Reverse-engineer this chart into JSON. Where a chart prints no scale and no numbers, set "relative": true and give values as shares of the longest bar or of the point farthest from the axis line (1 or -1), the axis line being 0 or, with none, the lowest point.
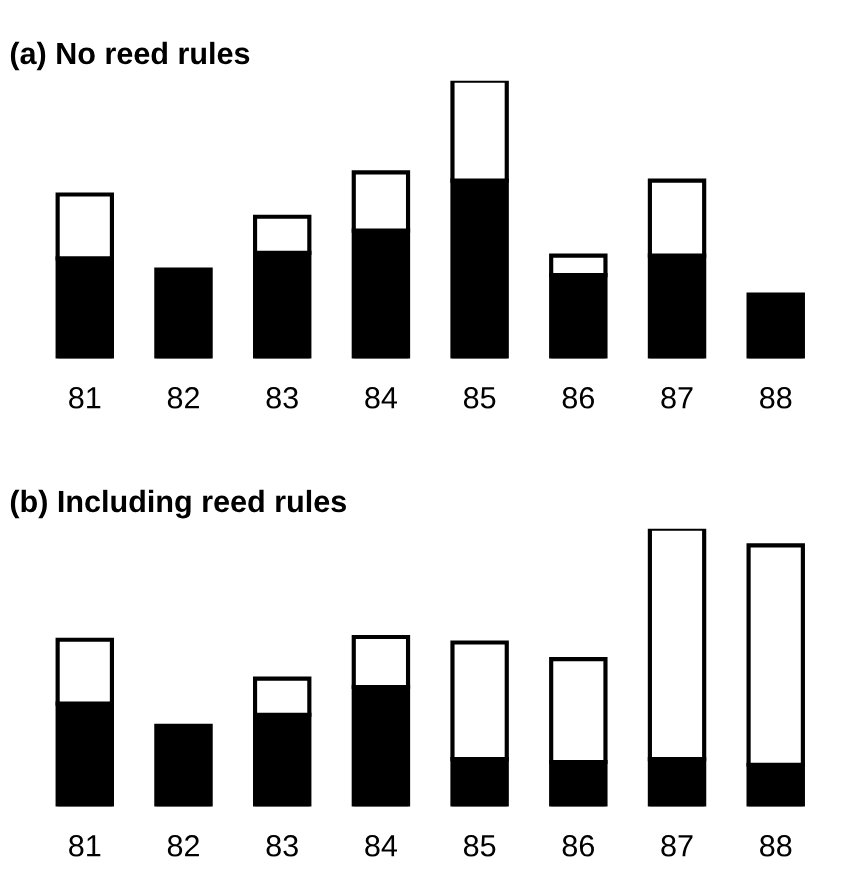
{
  "chart_data": [
    {
      "type": "bar",
      "title": "(a) No reed rules",
      "relative": true,
      "stacked": true,
      "categories": [
        "81",
        "82",
        "83",
        "84",
        "85",
        "86",
        "87",
        "88"
      ],
      "series": [
        {
          "color": "#000000",
          "values": [
            0.36,
            0.32,
            0.38,
            0.46,
            0.64,
            0.3,
            0.37,
            0.23
          ]
        },
        {
          "color": "#ffffff",
          "values": [
            0.23,
            0,
            0.13,
            0.21,
            0.36,
            0.07,
            0.27,
            0
          ]
        }
      ]
    },
    {
      "type": "bar",
      "title": "(b) Including reed rules",
      "relative": true,
      "stacked": true,
      "categories": [
        "81",
        "82",
        "83",
        "84",
        "85",
        "86",
        "87",
        "88"
      ],
      "series": [
        {
          "color": "#000000",
          "values": [
            0.37,
            0.29,
            0.33,
            0.43,
            0.17,
            0.16,
            0.17,
            0.15
          ]
        },
        {
          "color": "#ffffff",
          "values": [
            0.23,
            0,
            0.13,
            0.18,
            0.42,
            0.37,
            0.83,
            0.79
          ]
        }
      ]
    }
  ]
}
